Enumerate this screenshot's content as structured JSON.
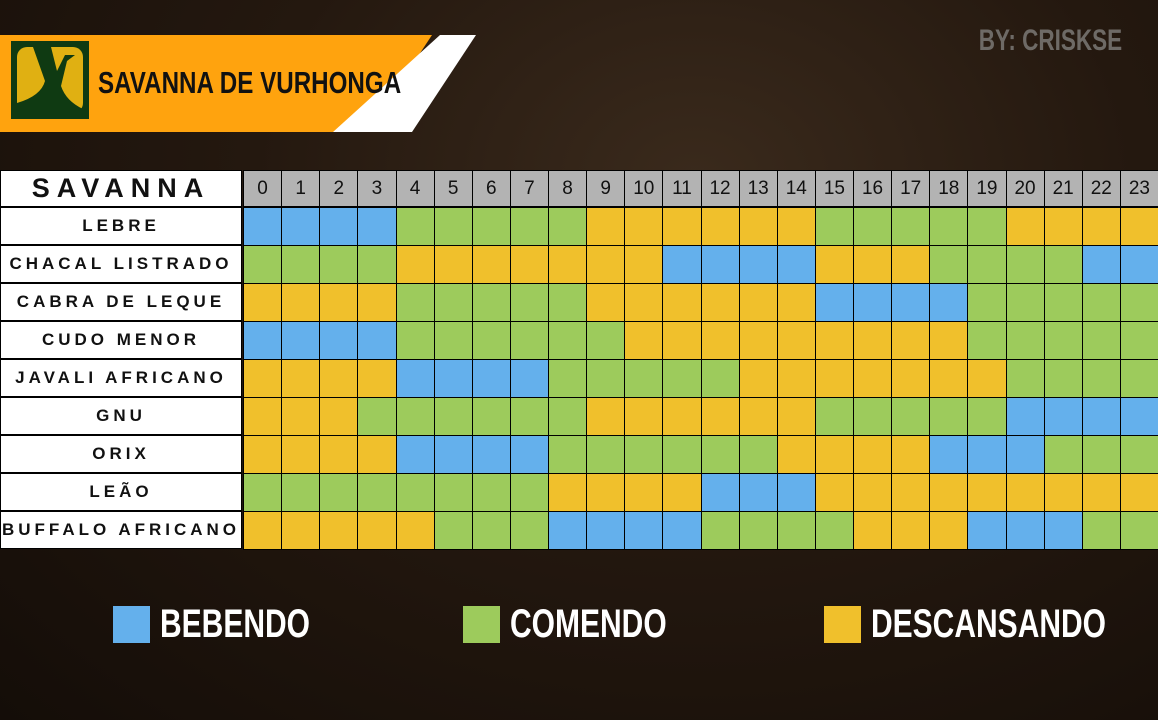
{
  "header": {
    "title": "SAVANNA DE VURHONGA",
    "byline": "BY: CRISKSE",
    "logo_icon": "antler-tree-logo"
  },
  "colors": {
    "B": "#64b0ec",
    "C": "#9dcb5c",
    "D": "#f0c02c",
    "banner": "#ffa30e"
  },
  "chart_data": {
    "type": "heatmap",
    "corner_label": "SAVANNA",
    "hours": [
      "0",
      "1",
      "2",
      "3",
      "4",
      "5",
      "6",
      "7",
      "8",
      "9",
      "10",
      "11",
      "12",
      "13",
      "14",
      "15",
      "16",
      "17",
      "18",
      "19",
      "20",
      "21",
      "22",
      "23"
    ],
    "legend": [
      {
        "key": "B",
        "label": "BEBENDO"
      },
      {
        "key": "C",
        "label": "COMENDO"
      },
      {
        "key": "D",
        "label": "DESCANSANDO"
      }
    ],
    "rows": [
      {
        "label": "LEBRE",
        "states": "BBBBCCCCCDDDDDDCCCCCDDDD"
      },
      {
        "label": "CHACAL LISTRADO",
        "states": "CCCCDDDDDDDBBBBDDDCCCCBB"
      },
      {
        "label": "CABRA DE LEQUE",
        "states": "DDDDCCCCCDDDDDDBBBBCCCCC"
      },
      {
        "label": "CUDO MENOR",
        "states": "BBBBCCCCCCDDDDDDDDDCCCCC"
      },
      {
        "label": "JAVALI AFRICANO",
        "states": "DDDDBBBBCCCCCDDDDDDDCCCC"
      },
      {
        "label": "GNU",
        "states": "DDDCCCCCCDDDDDDCCCCCBBBB"
      },
      {
        "label": "ORIX",
        "states": "DDDDBBBBCCCCCCDDDDBBBCCC"
      },
      {
        "label": "LEÃO",
        "states": "CCCCCCCCDDDDBBBDDDDDDDDD"
      },
      {
        "label": "BUFFALO AFRICANO",
        "states": "DDDDDCCCBBBBCCCCDDDBBBCC"
      }
    ]
  }
}
